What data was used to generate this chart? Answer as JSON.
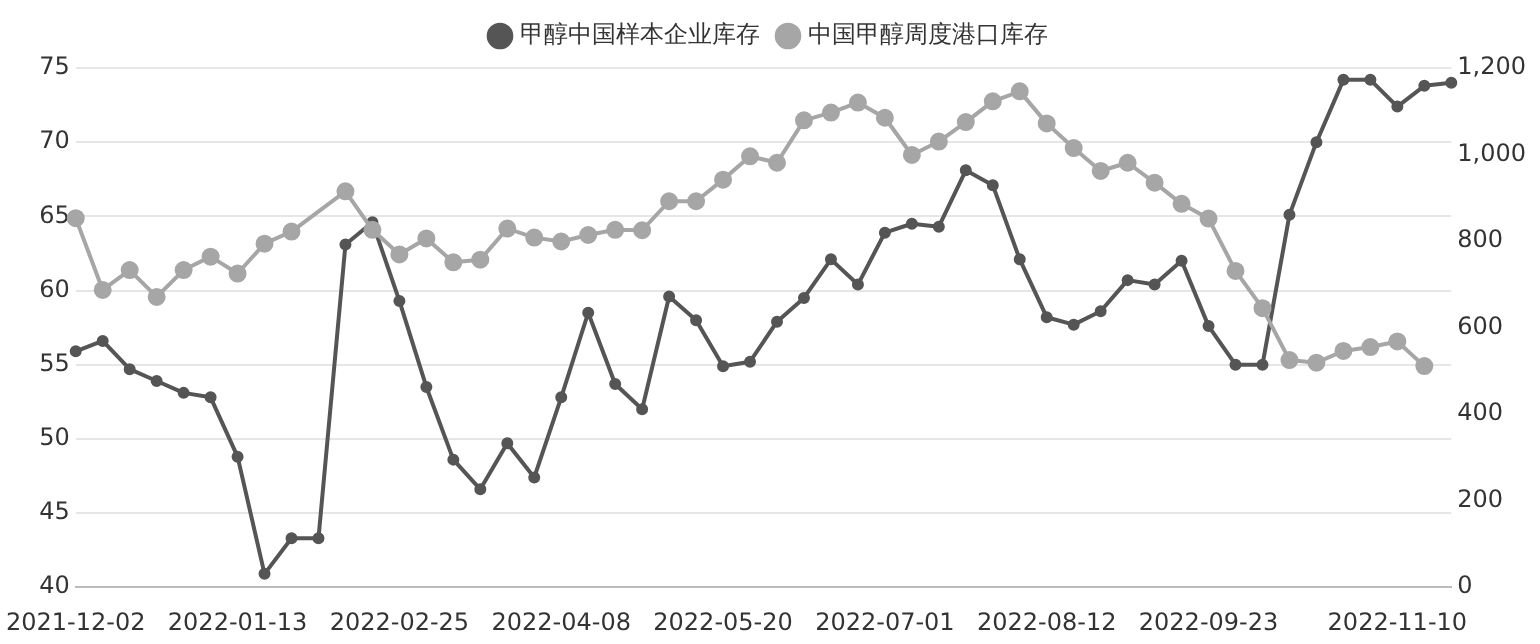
{
  "chart_data": {
    "type": "line",
    "categories": [
      "2021-12-02",
      null,
      null,
      null,
      null,
      null,
      "2022-01-13",
      null,
      null,
      null,
      null,
      null,
      "2022-02-25",
      null,
      null,
      null,
      null,
      null,
      "2022-04-08",
      null,
      null,
      null,
      null,
      null,
      "2022-05-20",
      null,
      null,
      null,
      null,
      null,
      "2022-07-01",
      null,
      null,
      null,
      null,
      null,
      "2022-08-12",
      null,
      null,
      null,
      null,
      null,
      "2022-09-23",
      null,
      null,
      null,
      null,
      null,
      null,
      "2022-11-10",
      null,
      null
    ],
    "series": [
      {
        "name": "甲醇中国样本企业库存",
        "color": "#555555",
        "values": [
          55.9,
          56.6,
          54.7,
          53.9,
          53.1,
          52.8,
          48.8,
          40.9,
          43.3,
          43.3,
          63.1,
          64.6,
          59.3,
          53.5,
          48.6,
          46.6,
          49.7,
          47.4,
          52.8,
          58.5,
          53.7,
          52.0,
          59.6,
          58.0,
          54.9,
          55.2,
          57.9,
          59.5,
          62.1,
          60.4,
          63.9,
          64.5,
          64.3,
          68.1,
          67.1,
          62.1,
          58.2,
          57.7,
          58.6,
          60.7,
          60.4,
          62.0,
          57.6,
          55.0,
          55.0,
          65.1,
          70.0,
          74.2,
          74.2,
          72.4,
          73.8,
          74.0
        ]
      },
      {
        "name": "中国甲醇周度港口库存",
        "color": "#a6a6a6",
        "axis": "y2",
        "values": [
          853,
          687,
          733,
          671,
          733,
          764,
          725,
          794,
          822,
          null,
          915,
          826,
          769,
          806,
          751,
          757,
          829,
          808,
          799,
          814,
          826,
          825,
          892,
          892,
          942,
          996,
          981,
          1079,
          1097,
          1120,
          1085,
          999,
          1030,
          1075,
          1123,
          1146,
          1072,
          1015,
          962,
          981,
          935,
          886,
          852,
          731,
          645,
          525,
          519,
          546,
          555,
          568,
          511,
          null
        ]
      }
    ],
    "ylim": [
      40,
      75
    ],
    "yticks": [
      40,
      45,
      50,
      55,
      60,
      65,
      70,
      75
    ],
    "y2lim": [
      0,
      1200
    ],
    "y2ticks": [
      0,
      {
        "value": 200,
        "label": "200"
      },
      {
        "value": 400,
        "label": "400"
      },
      {
        "value": 600,
        "label": "600"
      },
      {
        "value": 800,
        "label": "800"
      },
      {
        "value": 1000,
        "label": "1,000"
      },
      {
        "value": 1200,
        "label": "1,200"
      }
    ],
    "grid": "y",
    "legend": "top",
    "marker": "circle",
    "line_style": "solid"
  }
}
